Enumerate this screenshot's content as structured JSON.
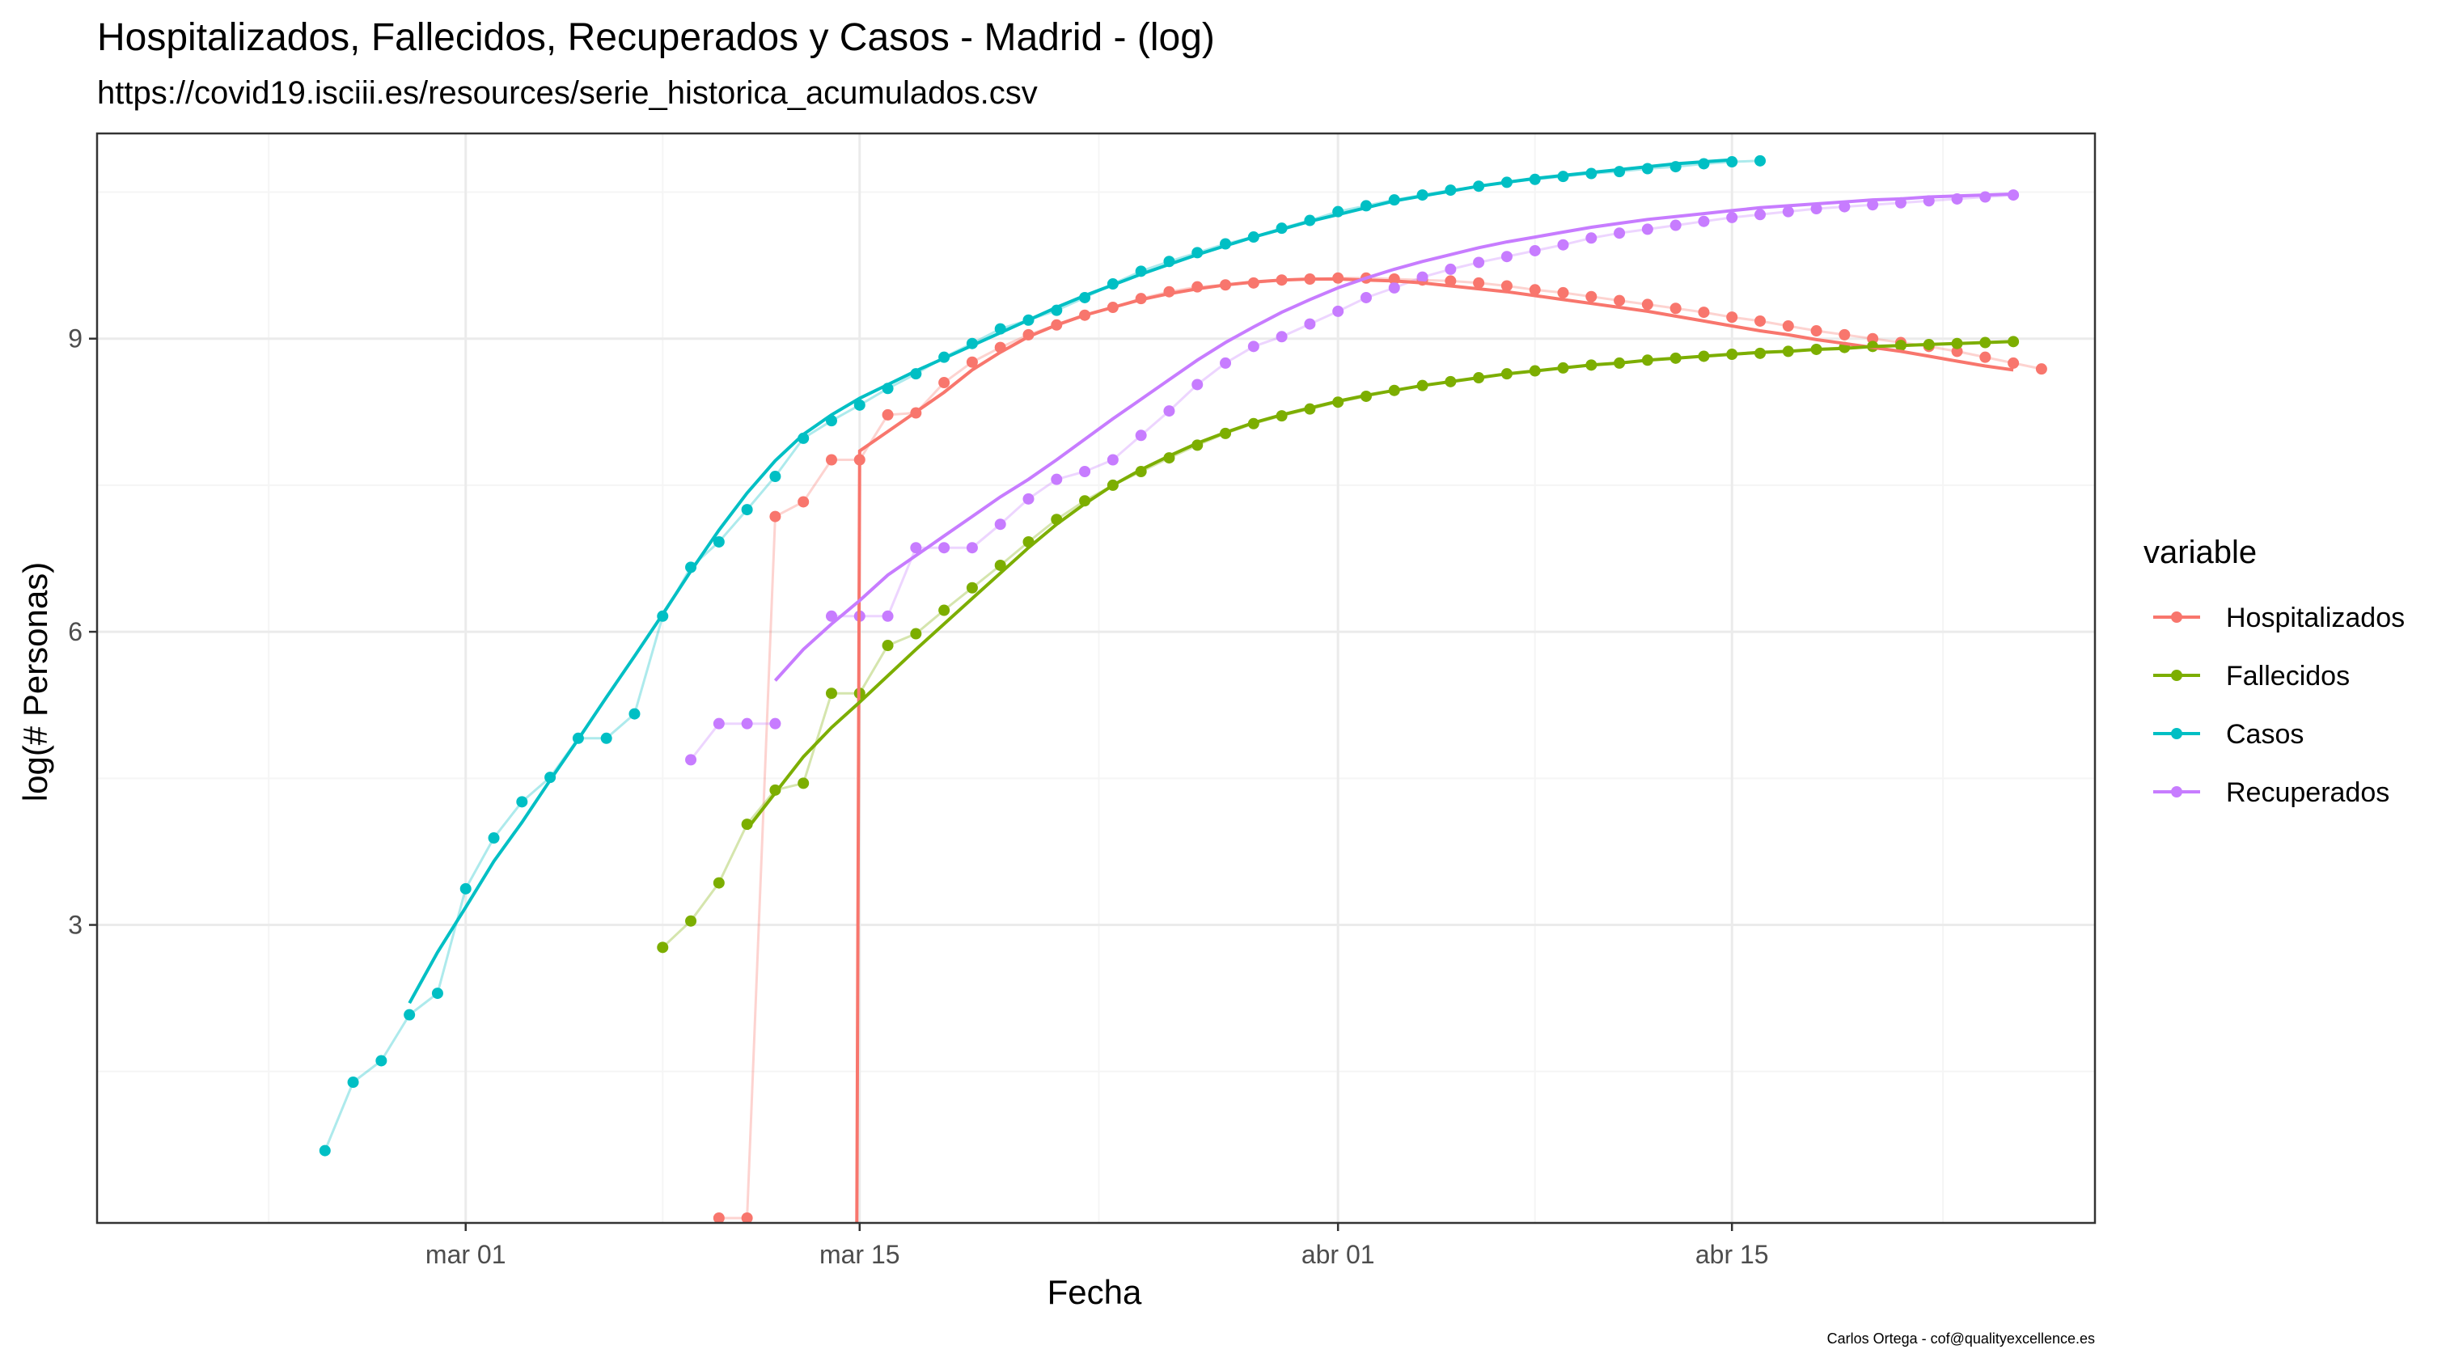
{
  "chart_data": {
    "type": "line",
    "title": "Hospitalizados, Fallecidos, Recuperados y Casos - Madrid - (log)",
    "subtitle": "https://covid19.isciii.es/resources/serie_historica_acumulados.csv",
    "xlabel": "Fecha",
    "ylabel": "log(# Personas)",
    "caption": "Carlos Ortega - cof@qualityexcellence.es",
    "legend_title": "variable",
    "legend_position": "right",
    "grid": true,
    "x_ticks": [
      {
        "day": 0,
        "label": "mar 01"
      },
      {
        "day": 14,
        "label": "mar 15"
      },
      {
        "day": 31,
        "label": "abr 01"
      },
      {
        "day": 45,
        "label": "abr 15"
      }
    ],
    "y_ticks": [
      3,
      6,
      9
    ],
    "ylim": [
      -0.05,
      11.1
    ],
    "xlim_days": [
      -13.1,
      57.9
    ],
    "series": [
      {
        "name": "Hospitalizados",
        "color": "#F8766D",
        "x_start": 9,
        "points": [
          0,
          0,
          7.18,
          7.33,
          7.76,
          7.76,
          8.22,
          8.24,
          8.55,
          8.76,
          8.91,
          9.04,
          9.14,
          9.24,
          9.32,
          9.41,
          9.48,
          9.53,
          9.55,
          9.57,
          9.6,
          9.61,
          9.62,
          9.62,
          9.61,
          9.6,
          9.59,
          9.57,
          9.54,
          9.5,
          9.47,
          9.43,
          9.39,
          9.35,
          9.31,
          9.27,
          9.22,
          9.18,
          9.13,
          9.08,
          9.04,
          9.0,
          8.96,
          8.92,
          8.87,
          8.81,
          8.75,
          8.69
        ],
        "smooth": [
          [
            13.9,
            -0.05
          ],
          [
            14.0,
            7.85
          ],
          [
            15,
            8.05
          ],
          [
            16,
            8.25
          ],
          [
            17,
            8.45
          ],
          [
            18,
            8.68
          ],
          [
            19,
            8.86
          ],
          [
            20,
            9.02
          ],
          [
            21,
            9.14
          ],
          [
            22,
            9.24
          ],
          [
            23,
            9.32
          ],
          [
            24,
            9.4
          ],
          [
            25,
            9.46
          ],
          [
            26,
            9.51
          ],
          [
            27,
            9.55
          ],
          [
            28,
            9.58
          ],
          [
            29,
            9.6
          ],
          [
            30,
            9.61
          ],
          [
            31,
            9.61
          ],
          [
            32,
            9.6
          ],
          [
            33,
            9.59
          ],
          [
            34,
            9.57
          ],
          [
            35,
            9.54
          ],
          [
            36,
            9.51
          ],
          [
            37,
            9.48
          ],
          [
            38,
            9.44
          ],
          [
            39,
            9.4
          ],
          [
            40,
            9.36
          ],
          [
            41,
            9.32
          ],
          [
            42,
            9.28
          ],
          [
            43,
            9.23
          ],
          [
            44,
            9.18
          ],
          [
            45,
            9.13
          ],
          [
            46,
            9.08
          ],
          [
            47,
            9.04
          ],
          [
            48,
            8.99
          ],
          [
            49,
            8.95
          ],
          [
            50,
            8.91
          ],
          [
            51,
            8.87
          ],
          [
            52,
            8.82
          ],
          [
            53,
            8.77
          ],
          [
            54,
            8.72
          ],
          [
            55,
            8.68
          ]
        ]
      },
      {
        "name": "Fallecidos",
        "color": "#7CAE00",
        "x_start": 7,
        "points": [
          2.77,
          3.04,
          3.43,
          4.03,
          4.38,
          4.45,
          5.37,
          5.37,
          5.86,
          5.98,
          6.22,
          6.45,
          6.68,
          6.92,
          7.15,
          7.34,
          7.5,
          7.64,
          7.78,
          7.91,
          8.03,
          8.13,
          8.21,
          8.28,
          8.35,
          8.41,
          8.47,
          8.52,
          8.56,
          8.6,
          8.64,
          8.67,
          8.7,
          8.73,
          8.75,
          8.78,
          8.8,
          8.82,
          8.84,
          8.85,
          8.87,
          8.89,
          8.91,
          8.92,
          8.93,
          8.94,
          8.95,
          8.96,
          8.97
        ],
        "smooth": [
          [
            10,
            3.98
          ],
          [
            11,
            4.35
          ],
          [
            12,
            4.72
          ],
          [
            13,
            5.02
          ],
          [
            14,
            5.28
          ],
          [
            15,
            5.55
          ],
          [
            16,
            5.82
          ],
          [
            17,
            6.08
          ],
          [
            18,
            6.34
          ],
          [
            19,
            6.6
          ],
          [
            20,
            6.86
          ],
          [
            21,
            7.1
          ],
          [
            22,
            7.31
          ],
          [
            23,
            7.5
          ],
          [
            24,
            7.66
          ],
          [
            25,
            7.8
          ],
          [
            26,
            7.93
          ],
          [
            27,
            8.04
          ],
          [
            28,
            8.14
          ],
          [
            29,
            8.22
          ],
          [
            30,
            8.29
          ],
          [
            31,
            8.36
          ],
          [
            32,
            8.42
          ],
          [
            33,
            8.47
          ],
          [
            34,
            8.52
          ],
          [
            35,
            8.56
          ],
          [
            36,
            8.6
          ],
          [
            37,
            8.64
          ],
          [
            38,
            8.67
          ],
          [
            39,
            8.7
          ],
          [
            40,
            8.73
          ],
          [
            41,
            8.75
          ],
          [
            42,
            8.78
          ],
          [
            43,
            8.8
          ],
          [
            44,
            8.82
          ],
          [
            45,
            8.84
          ],
          [
            46,
            8.86
          ],
          [
            47,
            8.87
          ],
          [
            48,
            8.89
          ],
          [
            49,
            8.9
          ],
          [
            50,
            8.92
          ],
          [
            51,
            8.93
          ],
          [
            52,
            8.94
          ],
          [
            53,
            8.95
          ],
          [
            54,
            8.96
          ],
          [
            55,
            8.97
          ]
        ]
      },
      {
        "name": "Casos",
        "color": "#00BFC4",
        "x_start": -5,
        "points": [
          0.69,
          1.39,
          1.61,
          2.08,
          2.3,
          3.37,
          3.89,
          4.26,
          4.51,
          4.91,
          4.91,
          5.16,
          6.16,
          6.66,
          6.92,
          7.25,
          7.59,
          7.98,
          8.16,
          8.32,
          8.49,
          8.64,
          8.81,
          8.95,
          9.1,
          9.19,
          9.29,
          9.42,
          9.56,
          9.69,
          9.79,
          9.88,
          9.97,
          10.04,
          10.13,
          10.21,
          10.3,
          10.36,
          10.42,
          10.47,
          10.52,
          10.56,
          10.6,
          10.63,
          10.66,
          10.69,
          10.71,
          10.74,
          10.76,
          10.79,
          10.81,
          10.82
        ],
        "smooth": [
          [
            -2,
            2.2
          ],
          [
            -1,
            2.72
          ],
          [
            0,
            3.18
          ],
          [
            1,
            3.65
          ],
          [
            2,
            4.05
          ],
          [
            3,
            4.48
          ],
          [
            4,
            4.9
          ],
          [
            5,
            5.33
          ],
          [
            6,
            5.75
          ],
          [
            7,
            6.18
          ],
          [
            8,
            6.62
          ],
          [
            9,
            7.04
          ],
          [
            10,
            7.42
          ],
          [
            11,
            7.75
          ],
          [
            12,
            8.02
          ],
          [
            13,
            8.22
          ],
          [
            14,
            8.39
          ],
          [
            15,
            8.53
          ],
          [
            16,
            8.67
          ],
          [
            17,
            8.8
          ],
          [
            18,
            8.93
          ],
          [
            19,
            9.06
          ],
          [
            20,
            9.19
          ],
          [
            21,
            9.32
          ],
          [
            22,
            9.44
          ],
          [
            23,
            9.55
          ],
          [
            24,
            9.66
          ],
          [
            25,
            9.76
          ],
          [
            26,
            9.86
          ],
          [
            27,
            9.95
          ],
          [
            28,
            10.04
          ],
          [
            29,
            10.12
          ],
          [
            30,
            10.2
          ],
          [
            31,
            10.27
          ],
          [
            32,
            10.34
          ],
          [
            33,
            10.41
          ],
          [
            34,
            10.46
          ],
          [
            35,
            10.51
          ],
          [
            36,
            10.56
          ],
          [
            37,
            10.6
          ],
          [
            38,
            10.64
          ],
          [
            39,
            10.67
          ],
          [
            40,
            10.7
          ],
          [
            41,
            10.73
          ],
          [
            42,
            10.76
          ],
          [
            43,
            10.79
          ],
          [
            44,
            10.81
          ],
          [
            45,
            10.83
          ]
        ]
      },
      {
        "name": "Recuperados",
        "color": "#C77CFF",
        "x_start": 8,
        "points": [
          4.69,
          5.06,
          5.06,
          5.06,
          null,
          6.16,
          6.16,
          6.16,
          6.86,
          6.86,
          6.86,
          7.1,
          7.36,
          7.56,
          7.64,
          7.76,
          8.01,
          8.26,
          8.53,
          8.75,
          8.92,
          9.02,
          9.15,
          9.28,
          9.42,
          9.52,
          9.63,
          9.71,
          9.78,
          9.84,
          9.9,
          9.96,
          10.03,
          10.08,
          10.12,
          10.16,
          10.2,
          10.24,
          10.27,
          10.3,
          10.33,
          10.35,
          10.37,
          10.39,
          10.41,
          10.43,
          10.45,
          10.47
        ],
        "smooth": [
          [
            11,
            5.5
          ],
          [
            12,
            5.82
          ],
          [
            13,
            6.08
          ],
          [
            14,
            6.32
          ],
          [
            15,
            6.58
          ],
          [
            16,
            6.78
          ],
          [
            17,
            6.98
          ],
          [
            18,
            7.18
          ],
          [
            19,
            7.38
          ],
          [
            20,
            7.56
          ],
          [
            21,
            7.76
          ],
          [
            22,
            7.97
          ],
          [
            23,
            8.18
          ],
          [
            24,
            8.38
          ],
          [
            25,
            8.58
          ],
          [
            26,
            8.78
          ],
          [
            27,
            8.96
          ],
          [
            28,
            9.12
          ],
          [
            29,
            9.27
          ],
          [
            30,
            9.4
          ],
          [
            31,
            9.52
          ],
          [
            32,
            9.62
          ],
          [
            33,
            9.71
          ],
          [
            34,
            9.79
          ],
          [
            35,
            9.86
          ],
          [
            36,
            9.93
          ],
          [
            37,
            9.99
          ],
          [
            38,
            10.04
          ],
          [
            39,
            10.09
          ],
          [
            40,
            10.14
          ],
          [
            41,
            10.18
          ],
          [
            42,
            10.22
          ],
          [
            43,
            10.25
          ],
          [
            44,
            10.28
          ],
          [
            45,
            10.31
          ],
          [
            46,
            10.34
          ],
          [
            47,
            10.36
          ],
          [
            48,
            10.38
          ],
          [
            49,
            10.4
          ],
          [
            50,
            10.42
          ],
          [
            51,
            10.43
          ],
          [
            52,
            10.45
          ],
          [
            53,
            10.46
          ],
          [
            54,
            10.47
          ],
          [
            55,
            10.48
          ]
        ]
      }
    ]
  }
}
